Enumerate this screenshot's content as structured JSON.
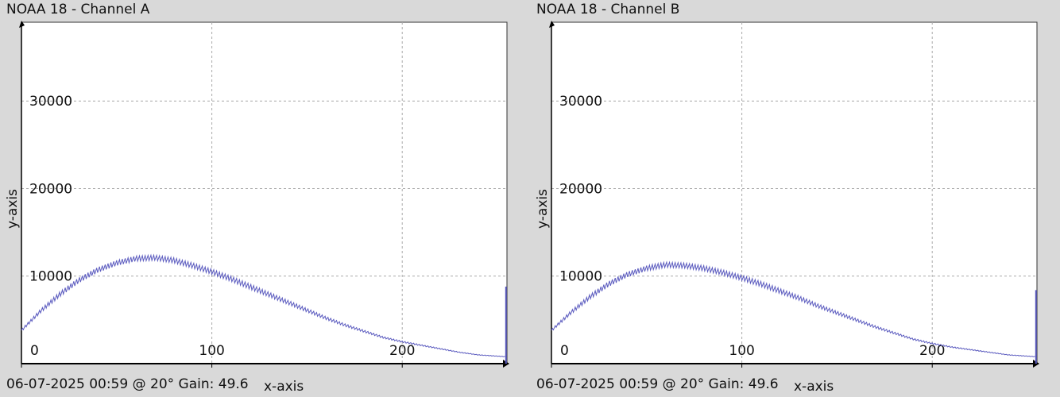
{
  "chart_data": [
    {
      "type": "line",
      "title": "NOAA 18 - Channel A",
      "footer": "06-07-2025 00:59 @ 20° Gain: 49.6",
      "xlabel": "x-axis",
      "ylabel": "y-axis",
      "xlim": [
        0,
        255
      ],
      "ylim": [
        0,
        39000
      ],
      "xticks": [
        0,
        100,
        200
      ],
      "yticks": [
        10000,
        20000,
        30000
      ],
      "grid": true,
      "line_color": "#5b5bbf",
      "series": [
        {
          "x": [
            0,
            10,
            20,
            30,
            40,
            50,
            60,
            70,
            80,
            90,
            100,
            110,
            120,
            130,
            140,
            150,
            160,
            170,
            180,
            190,
            200,
            210,
            220,
            230,
            240,
            254
          ],
          "values": [
            3800,
            6000,
            7900,
            9500,
            10700,
            11500,
            12000,
            12100,
            11800,
            11200,
            10500,
            9700,
            8800,
            7900,
            7000,
            6100,
            5200,
            4400,
            3700,
            3000,
            2500,
            2100,
            1700,
            1300,
            1000,
            800
          ]
        }
      ],
      "end_spike": 8800
    },
    {
      "type": "line",
      "title": "NOAA 18 - Channel B",
      "footer": "06-07-2025 00:59 @ 20° Gain: 49.6",
      "xlabel": "x-axis",
      "ylabel": "y-axis",
      "xlim": [
        0,
        255
      ],
      "ylim": [
        0,
        39000
      ],
      "xticks": [
        0,
        100,
        200
      ],
      "yticks": [
        10000,
        20000,
        30000
      ],
      "grid": true,
      "line_color": "#5b5bbf",
      "series": [
        {
          "x": [
            0,
            10,
            20,
            30,
            40,
            50,
            60,
            70,
            80,
            90,
            100,
            110,
            120,
            130,
            140,
            150,
            160,
            170,
            180,
            190,
            200,
            210,
            220,
            230,
            240,
            254
          ],
          "values": [
            3800,
            5800,
            7600,
            9100,
            10200,
            10900,
            11300,
            11200,
            10900,
            10400,
            9800,
            9100,
            8300,
            7500,
            6600,
            5800,
            5000,
            4200,
            3500,
            2800,
            2300,
            1900,
            1600,
            1300,
            1000,
            800
          ]
        }
      ],
      "end_spike": 8400
    }
  ]
}
